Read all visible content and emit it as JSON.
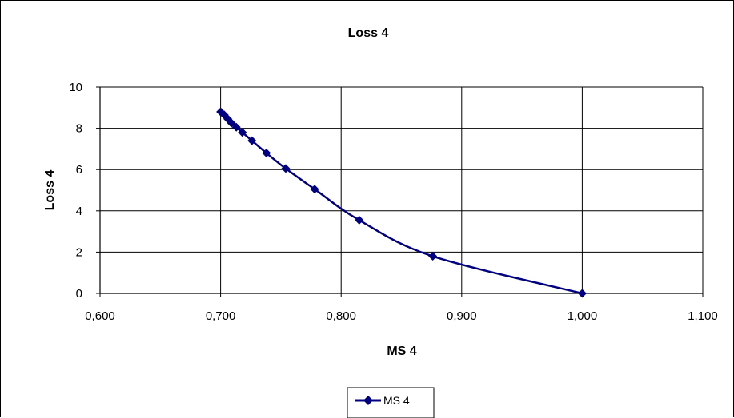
{
  "chart_data": {
    "type": "scatter",
    "title": "Loss 4",
    "xlabel": "MS 4",
    "ylabel": "Loss 4",
    "xlim": [
      0.6,
      1.1
    ],
    "ylim": [
      0,
      10
    ],
    "x_ticks": [
      "0,600",
      "0,700",
      "0,800",
      "0,900",
      "1,000",
      "1,100"
    ],
    "y_ticks": [
      "0",
      "2",
      "4",
      "6",
      "8",
      "10"
    ],
    "grid": true,
    "legend_position": "bottom",
    "series": [
      {
        "name": "MS 4",
        "color": "#000080",
        "marker": "diamond",
        "smoothed": true,
        "x": [
          0.7,
          0.703,
          0.706,
          0.709,
          0.713,
          0.718,
          0.726,
          0.738,
          0.754,
          0.778,
          0.815,
          0.876,
          1.0
        ],
        "y": [
          8.8,
          8.65,
          8.45,
          8.25,
          8.05,
          7.8,
          7.4,
          6.8,
          6.05,
          5.05,
          3.55,
          1.8,
          0.0
        ]
      }
    ]
  }
}
